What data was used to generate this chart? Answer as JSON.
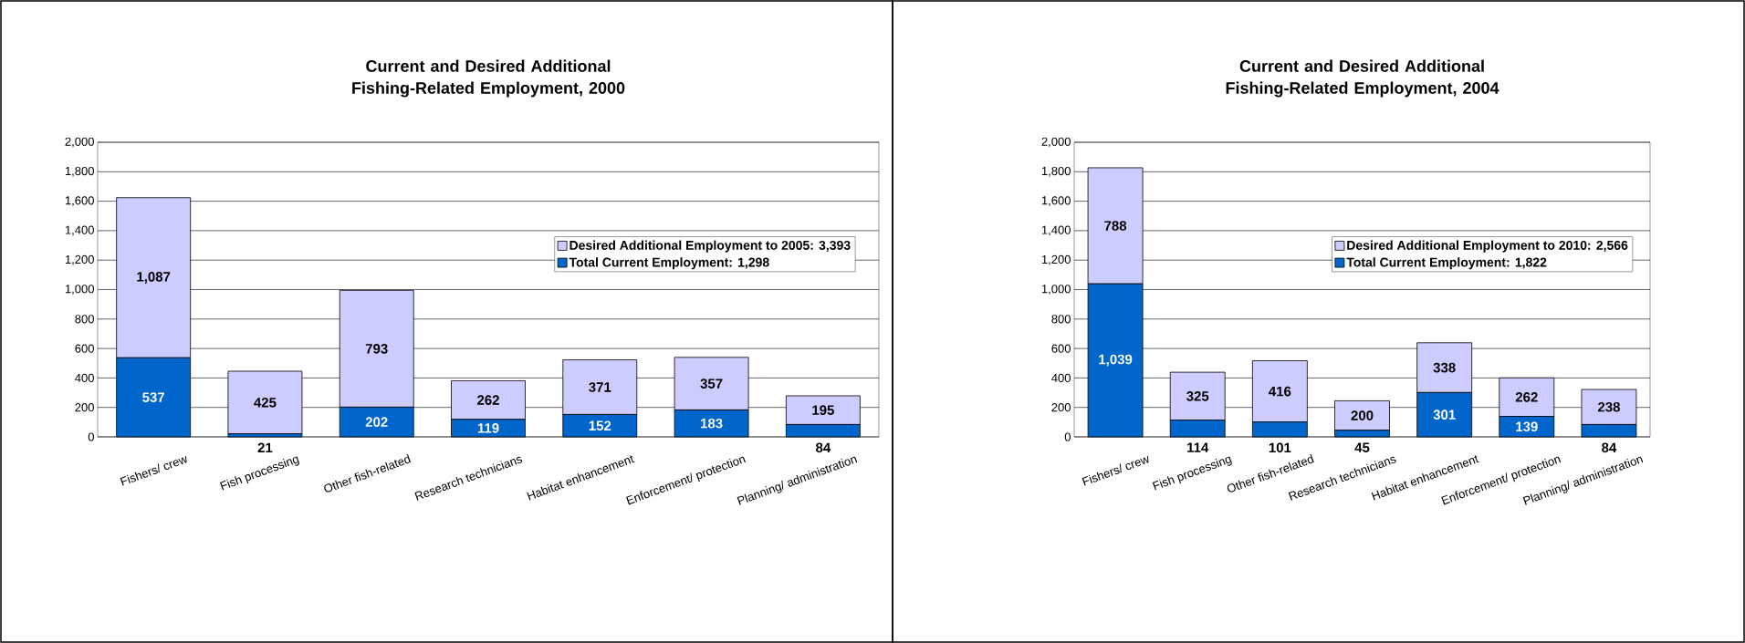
{
  "chart_data": [
    {
      "type": "bar",
      "title": "Current and Desired Additional Fishing-Related Employment, 2000",
      "categories": [
        "Fishers/ crew",
        "Fish processing",
        "Other fish-related",
        "Research technicians",
        "Habitat enhancement",
        "Enforcement/ protection",
        "Planning/ administration"
      ],
      "series": [
        {
          "name": "Total Current Employment:    1,298",
          "color": "#0066cc",
          "values": [
            537,
            21,
            202,
            119,
            152,
            183,
            84
          ],
          "value_labels": [
            "537",
            "21",
            "202",
            "119",
            "152",
            "183",
            "84"
          ]
        },
        {
          "name": "Desired Additional Employment to 2005: 3,393",
          "color": "#ccccff",
          "values": [
            1087,
            425,
            793,
            262,
            371,
            357,
            195
          ],
          "value_labels": [
            "1,087",
            "425",
            "793",
            "262",
            "371",
            "357",
            "195"
          ]
        }
      ],
      "stacked": true,
      "ylim": [
        0,
        2000
      ],
      "yticks": [
        0,
        {
          "value": 200,
          "label": "200"
        },
        {
          "value": 400,
          "label": "400"
        },
        {
          "value": 600,
          "label": "600"
        },
        {
          "value": 800,
          "label": "800"
        },
        {
          "value": 1000,
          "label": "1,000"
        },
        {
          "value": 1200,
          "label": "1,200"
        },
        {
          "value": 1400,
          "label": "1,400"
        },
        {
          "value": 1600,
          "label": "1,600"
        },
        {
          "value": 1800,
          "label": "1,800"
        },
        {
          "value": 2000,
          "label": "2,000"
        }
      ],
      "grid": "y",
      "legend": "right"
    },
    {
      "type": "bar",
      "title": "Current and Desired Additional Fishing-Related Employment, 2004",
      "categories": [
        "Fishers/ crew",
        "Fish processing",
        "Other fish-related",
        "Research technicians",
        "Habitat enhancement",
        "Enforcement/ protection",
        "Planning/ administration"
      ],
      "series": [
        {
          "name": "Total Current Employment:    1,822",
          "color": "#0066cc",
          "values": [
            1039,
            114,
            101,
            45,
            301,
            139,
            84
          ],
          "value_labels": [
            "1,039",
            "114",
            "101",
            "45",
            "301",
            "139",
            "84"
          ]
        },
        {
          "name": "Desired Additional Employment to 2010: 2,566",
          "color": "#ccccff",
          "values": [
            788,
            325,
            416,
            200,
            338,
            262,
            238
          ],
          "value_labels": [
            "788",
            "325",
            "416",
            "200",
            "338",
            "262",
            "238"
          ]
        }
      ],
      "stacked": true,
      "ylim": [
        0,
        2000
      ],
      "yticks": [
        0,
        {
          "value": 200,
          "label": "200"
        },
        {
          "value": 400,
          "label": "400"
        },
        {
          "value": 600,
          "label": "600"
        },
        {
          "value": 800,
          "label": "800"
        },
        {
          "value": 1000,
          "label": "1,000"
        },
        {
          "value": 1200,
          "label": "1,200"
        },
        {
          "value": 1400,
          "label": "1,400"
        },
        {
          "value": 1600,
          "label": "1,600"
        },
        {
          "value": 1800,
          "label": "1,800"
        },
        {
          "value": 2000,
          "label": "2,000"
        }
      ],
      "grid": "y",
      "legend": "right"
    }
  ]
}
